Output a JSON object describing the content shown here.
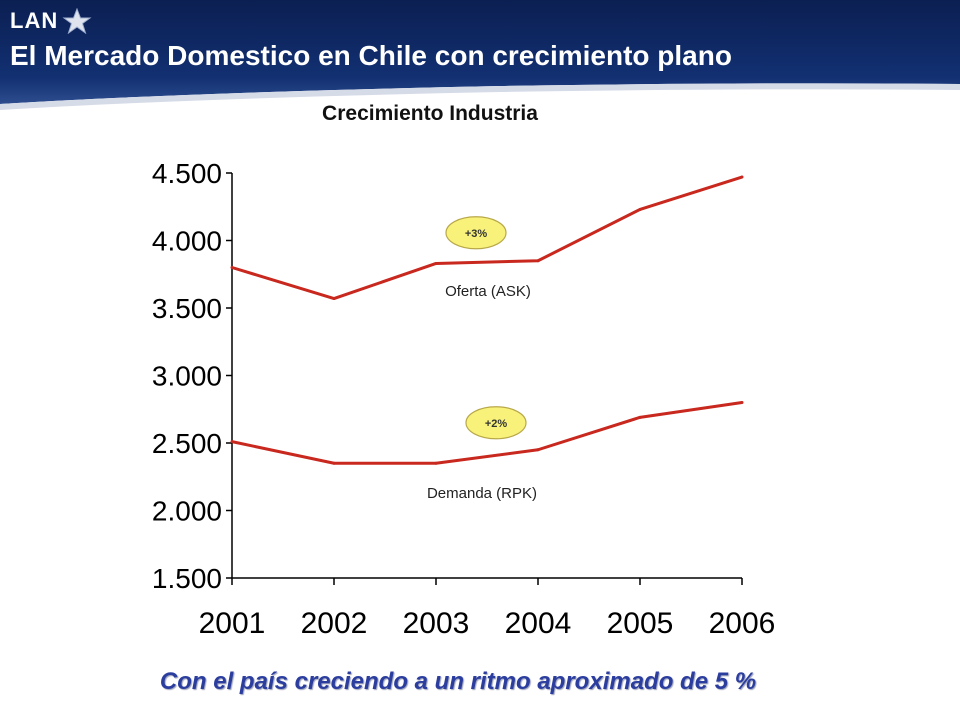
{
  "header": {
    "logo_text": "LAN",
    "title": "El Mercado Domestico en Chile con crecimiento plano",
    "colors": {
      "band": "#0f2a63",
      "band_light": "#3a5a9a"
    }
  },
  "chart_data": {
    "type": "line",
    "title": "Crecimiento Industria",
    "categories": [
      "2001",
      "2002",
      "2003",
      "2004",
      "2005",
      "2006"
    ],
    "ylim": [
      1500,
      4500
    ],
    "yticks": [
      "4.500",
      "4.000",
      "3.500",
      "3.000",
      "2.500",
      "2.000",
      "1.500"
    ],
    "ytick_values": [
      4500,
      4000,
      3500,
      3000,
      2500,
      2000,
      1500
    ],
    "grid": false,
    "series": [
      {
        "name": "Oferta (ASK)",
        "values": [
          3800,
          3570,
          3830,
          3850,
          4230,
          4470
        ],
        "color": "#c8281e"
      },
      {
        "name": "Demanda (RPK)",
        "values": [
          2510,
          2350,
          2350,
          2450,
          2690,
          2800
        ],
        "color": "#c8281e"
      }
    ],
    "annotations": [
      {
        "text": "+3%",
        "series": "Oferta (ASK)"
      },
      {
        "text": "+2%",
        "series": "Demanda (RPK)"
      }
    ],
    "badge_color": "#f8f27a"
  },
  "footer": {
    "note": "Con el país creciendo a un ritmo aproximado de 5 %"
  }
}
